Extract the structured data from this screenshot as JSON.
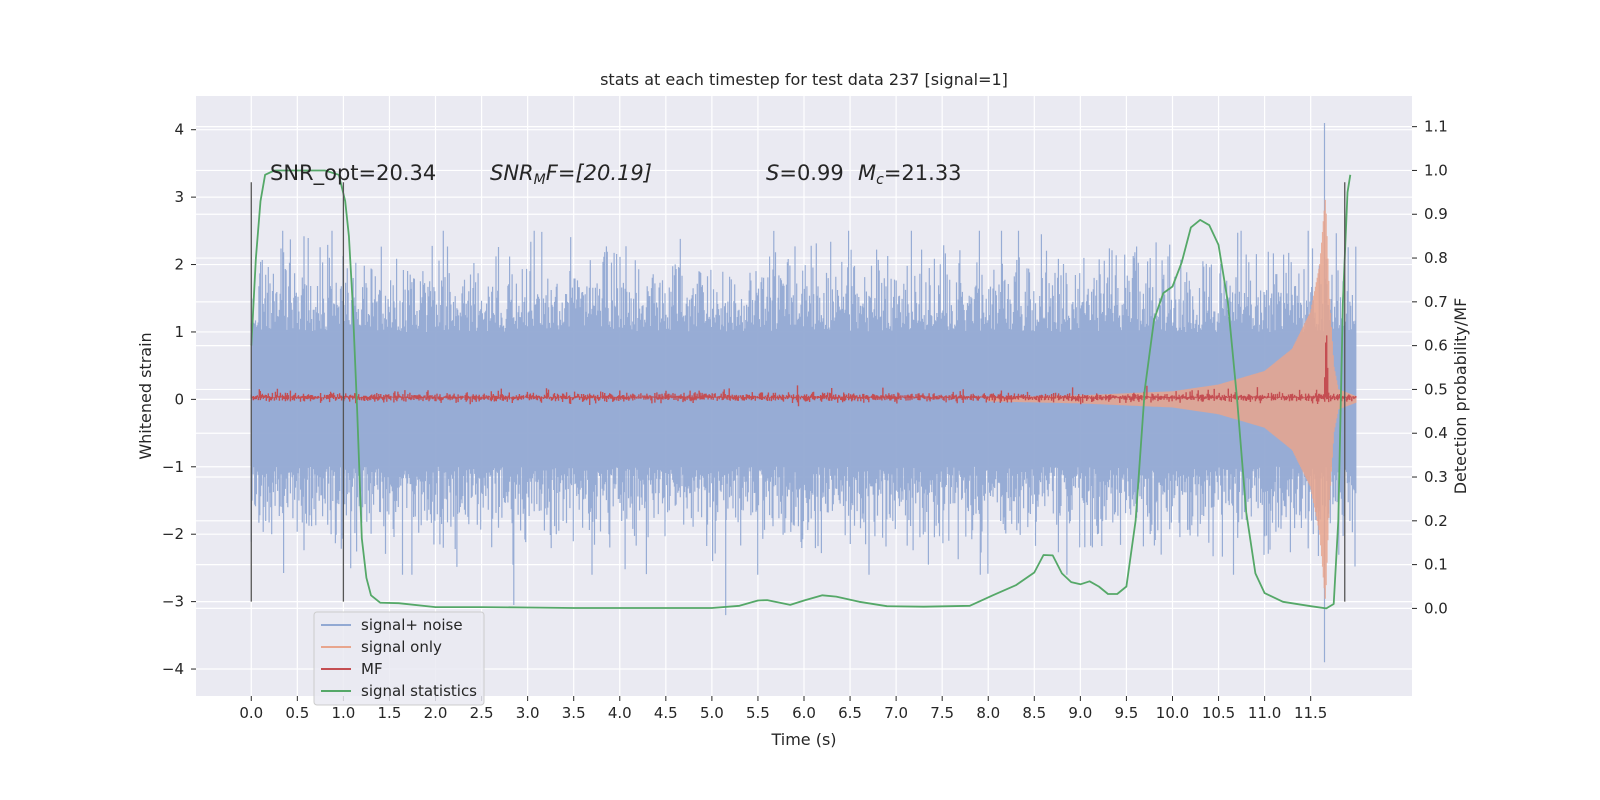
{
  "chart_data": {
    "type": "line",
    "title": "stats at each timestep for test data 237 [signal=1]",
    "xlabel": "Time (s)",
    "ylabel_left": "Whitened strain",
    "ylabel_right": "Detection probability/MF",
    "xlim": [
      -0.6,
      12.6
    ],
    "ylim_left": [
      -4.4,
      4.5
    ],
    "ylim_right": [
      -0.2,
      1.17
    ],
    "x_ticks": [
      0.0,
      0.5,
      1.0,
      1.5,
      2.0,
      2.5,
      3.0,
      3.5,
      4.0,
      4.5,
      5.0,
      5.5,
      6.0,
      6.5,
      7.0,
      7.5,
      8.0,
      8.5,
      9.0,
      9.5,
      10.0,
      10.5,
      11.0,
      11.5
    ],
    "x_tick_labels": [
      "0.0",
      "0.5",
      "1.0",
      "1.5",
      "2.0",
      "2.5",
      "3.0",
      "3.5",
      "4.0",
      "4.5",
      "5.0",
      "5.5",
      "6.0",
      "6.5",
      "7.0",
      "7.5",
      "8.0",
      "8.5",
      "9.0",
      "9.5",
      "10.0",
      "10.5",
      "11.0",
      "11.5"
    ],
    "y_ticks_left": [
      4,
      3,
      2,
      1,
      0,
      -1,
      -2,
      -3,
      -4
    ],
    "y_tick_labels_left": [
      "4",
      "3",
      "2",
      "1",
      "0",
      "−1",
      "−2",
      "−3",
      "−4"
    ],
    "y_ticks_right": [
      1.1,
      1.0,
      0.9,
      0.8,
      0.7,
      0.6,
      0.5,
      0.4,
      0.3,
      0.2,
      0.1,
      0.0
    ],
    "y_tick_labels_right": [
      "1.1",
      "1.0",
      "0.9",
      "0.8",
      "0.7",
      "0.6",
      "0.5",
      "0.4",
      "0.3",
      "0.2",
      "0.1",
      "0.0"
    ],
    "grid": true,
    "legend_position": "lower-left",
    "annotations": {
      "snr_opt": "SNR_opt=20.34",
      "snr_mf_prefix": "SNR",
      "snr_mf_sub": "M",
      "snr_mf_rest": "F=[20.19]",
      "s_name": "S",
      "s_value": "=0.99",
      "mc_name": "M",
      "mc_sub": "c",
      "mc_value": "=21.33"
    },
    "vertical_markers": [
      {
        "x": 0.0,
        "y_range": [
          -3.0,
          3.22
        ]
      },
      {
        "x": 1.0,
        "y_range": [
          -3.0,
          3.22
        ]
      },
      {
        "x": 11.87,
        "y_range": [
          -3.0,
          3.22
        ]
      }
    ],
    "series": [
      {
        "name": "signal+ noise",
        "axis": "left",
        "color": "#92a9d3",
        "kind": "noise-band",
        "x_range": [
          0.0,
          11.99
        ],
        "typical_peak": [
          -2.0,
          2.1
        ],
        "notable_extremes": [
          [
            2.85,
            -3.05
          ],
          [
            5.15,
            -3.2
          ],
          [
            11.65,
            4.1
          ],
          [
            11.65,
            -3.9
          ]
        ]
      },
      {
        "name": "signal only",
        "axis": "left",
        "color": "#e8a58d",
        "kind": "chirp",
        "x_range": [
          8.0,
          11.99
        ],
        "envelope": [
          [
            8.0,
            0.03
          ],
          [
            9.0,
            0.06
          ],
          [
            10.0,
            0.12
          ],
          [
            10.5,
            0.22
          ],
          [
            11.0,
            0.42
          ],
          [
            11.3,
            0.75
          ],
          [
            11.5,
            1.3
          ],
          [
            11.6,
            2.0
          ],
          [
            11.66,
            3.0
          ],
          [
            11.7,
            1.6
          ],
          [
            11.75,
            0.5
          ],
          [
            11.8,
            0.15
          ],
          [
            11.99,
            0.05
          ]
        ]
      },
      {
        "name": "MF",
        "axis": "left",
        "color": "#c44e52",
        "kind": "mf",
        "x_range": [
          0.0,
          11.99
        ],
        "baseline": 0.03,
        "peak": [
          11.67,
          1.0
        ]
      },
      {
        "name": "signal statistics",
        "axis": "right",
        "color": "#55a868",
        "kind": "line",
        "points": [
          [
            0.0,
            0.6
          ],
          [
            0.05,
            0.8
          ],
          [
            0.1,
            0.93
          ],
          [
            0.15,
            0.99
          ],
          [
            0.25,
            1.0
          ],
          [
            0.5,
            1.0
          ],
          [
            0.8,
            1.0
          ],
          [
            0.95,
            0.99
          ],
          [
            1.02,
            0.93
          ],
          [
            1.06,
            0.85
          ],
          [
            1.1,
            0.7
          ],
          [
            1.15,
            0.45
          ],
          [
            1.2,
            0.16
          ],
          [
            1.25,
            0.07
          ],
          [
            1.3,
            0.03
          ],
          [
            1.4,
            0.013
          ],
          [
            1.6,
            0.012
          ],
          [
            2.0,
            0.003
          ],
          [
            2.5,
            0.003
          ],
          [
            3.0,
            0.002
          ],
          [
            3.5,
            0.001
          ],
          [
            4.0,
            0.001
          ],
          [
            4.5,
            0.001
          ],
          [
            5.0,
            0.001
          ],
          [
            5.3,
            0.006
          ],
          [
            5.5,
            0.018
          ],
          [
            5.6,
            0.019
          ],
          [
            5.85,
            0.008
          ],
          [
            6.0,
            0.018
          ],
          [
            6.2,
            0.03
          ],
          [
            6.35,
            0.027
          ],
          [
            6.6,
            0.015
          ],
          [
            6.9,
            0.005
          ],
          [
            7.3,
            0.004
          ],
          [
            7.8,
            0.006
          ],
          [
            8.05,
            0.03
          ],
          [
            8.3,
            0.053
          ],
          [
            8.5,
            0.082
          ],
          [
            8.6,
            0.122
          ],
          [
            8.7,
            0.121
          ],
          [
            8.8,
            0.08
          ],
          [
            8.9,
            0.06
          ],
          [
            9.0,
            0.055
          ],
          [
            9.1,
            0.062
          ],
          [
            9.2,
            0.05
          ],
          [
            9.3,
            0.033
          ],
          [
            9.4,
            0.033
          ],
          [
            9.5,
            0.05
          ],
          [
            9.6,
            0.2
          ],
          [
            9.7,
            0.5
          ],
          [
            9.8,
            0.66
          ],
          [
            9.9,
            0.72
          ],
          [
            10.0,
            0.735
          ],
          [
            10.1,
            0.79
          ],
          [
            10.2,
            0.87
          ],
          [
            10.3,
            0.887
          ],
          [
            10.4,
            0.875
          ],
          [
            10.5,
            0.83
          ],
          [
            10.6,
            0.7
          ],
          [
            10.7,
            0.48
          ],
          [
            10.8,
            0.22
          ],
          [
            10.9,
            0.08
          ],
          [
            11.0,
            0.035
          ],
          [
            11.2,
            0.015
          ],
          [
            11.5,
            0.005
          ],
          [
            11.67,
            0.0
          ],
          [
            11.75,
            0.01
          ],
          [
            11.8,
            0.2
          ],
          [
            11.85,
            0.7
          ],
          [
            11.9,
            0.95
          ],
          [
            11.93,
            0.99
          ]
        ]
      }
    ]
  }
}
